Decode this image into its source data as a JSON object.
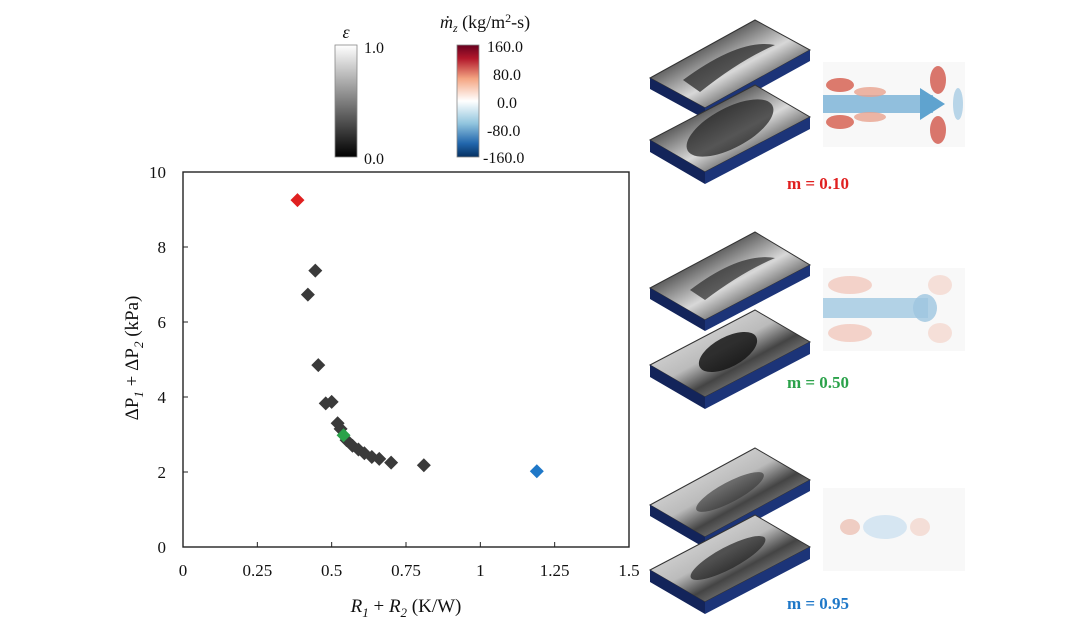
{
  "chart_data": {
    "type": "scatter",
    "xlabel_parts": [
      "R",
      "1",
      " + ",
      "R",
      "2",
      " (K/W)"
    ],
    "ylabel_parts": [
      "ΔP",
      "1",
      " + ΔP",
      "2",
      " (kPa)"
    ],
    "xlim": [
      0,
      1.5
    ],
    "ylim": [
      0,
      10
    ],
    "xticks": [
      "0",
      "0.25",
      "0.5",
      "0.75",
      "1",
      "1.25",
      "1.5"
    ],
    "yticks": [
      "0",
      "2",
      "4",
      "6",
      "8",
      "10"
    ],
    "grid": false,
    "marker": "diamond",
    "series": [
      {
        "color": "#3a3a3a",
        "points": [
          [
            0.42,
            6.73
          ],
          [
            0.445,
            7.37
          ],
          [
            0.455,
            4.85
          ],
          [
            0.48,
            3.83
          ],
          [
            0.5,
            3.87
          ],
          [
            0.52,
            3.3
          ],
          [
            0.53,
            3.15
          ],
          [
            0.55,
            2.85
          ],
          [
            0.57,
            2.7
          ],
          [
            0.59,
            2.6
          ],
          [
            0.61,
            2.5
          ],
          [
            0.635,
            2.4
          ],
          [
            0.66,
            2.35
          ],
          [
            0.7,
            2.25
          ],
          [
            0.81,
            2.18
          ]
        ]
      },
      {
        "color": "#e02020",
        "points": [
          [
            0.385,
            9.25
          ]
        ]
      },
      {
        "color": "#2ba24a",
        "points": [
          [
            0.54,
            2.98
          ]
        ]
      },
      {
        "color": "#1f78c8",
        "points": [
          [
            1.19,
            2.02
          ]
        ]
      }
    ]
  },
  "colorbars": {
    "epsilon": {
      "title": "ε",
      "max_label": "1.0",
      "min_label": "0.0",
      "colors": [
        "#000000",
        "#ffffff"
      ]
    },
    "mdot": {
      "title_parts": [
        "ṁ",
        "z",
        " (kg/m",
        "2",
        "-s)"
      ],
      "tick_labels": [
        "160.0",
        "80.0",
        "0.0",
        "-80.0",
        "-160.0"
      ],
      "colors": [
        "#67001f",
        "#b2182b",
        "#d6604d",
        "#f4a582",
        "#fddbc7",
        "#ffffff",
        "#d1e5f0",
        "#92c5de",
        "#4393c3",
        "#2166ac",
        "#053061"
      ]
    }
  },
  "insets": [
    {
      "label": "m = 0.10",
      "color": "#e02020"
    },
    {
      "label": "m = 0.50",
      "color": "#2ba24a"
    },
    {
      "label": "m = 0.95",
      "color": "#1f78c8"
    }
  ]
}
